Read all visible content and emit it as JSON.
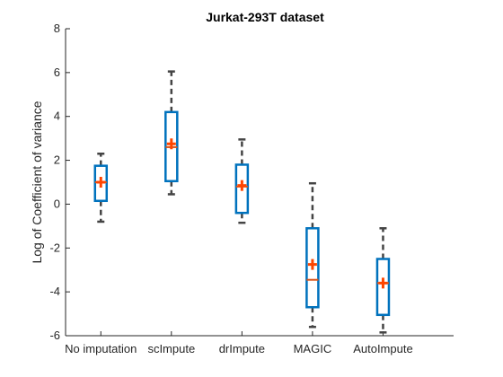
{
  "chart_data": {
    "type": "box",
    "title": "Jurkat-293T dataset",
    "xlabel": "",
    "ylabel": "Log of Coefficient of variance",
    "categories": [
      "No imputation",
      "scImpute",
      "drImpute",
      "MAGIC",
      "AutoImpute"
    ],
    "ylim": [
      -6,
      8
    ],
    "yticks": [
      -6,
      -4,
      -2,
      0,
      2,
      4,
      6,
      8
    ],
    "grid": false,
    "boxes": [
      {
        "whisker_low": -0.8,
        "q1": 0.15,
        "median": 1.0,
        "q3": 1.75,
        "whisker_high": 2.3,
        "mean": 1.0
      },
      {
        "whisker_low": 0.45,
        "q1": 1.05,
        "median": 2.6,
        "q3": 4.2,
        "whisker_high": 6.05,
        "mean": 2.75
      },
      {
        "whisker_low": -0.85,
        "q1": -0.4,
        "median": 0.8,
        "q3": 1.8,
        "whisker_high": 2.95,
        "mean": 0.85
      },
      {
        "whisker_low": -5.6,
        "q1": -4.7,
        "median": -3.45,
        "q3": -1.1,
        "whisker_high": 0.95,
        "mean": -2.75
      },
      {
        "whisker_low": -5.85,
        "q1": -5.05,
        "median": -3.6,
        "q3": -2.5,
        "whisker_high": -1.1,
        "mean": -3.6
      }
    ],
    "colors": {
      "box": "#0072BD",
      "median": "#D95319",
      "mean": "#FF4500",
      "whisker": "#444444",
      "axis": "#262626"
    }
  }
}
